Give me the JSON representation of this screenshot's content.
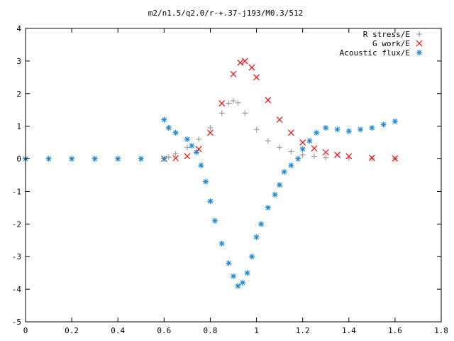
{
  "chart_data": {
    "type": "scatter",
    "title": "m2/n1.5/q2.0/r-+.37-j193/M0.3/512",
    "xlabel": "",
    "ylabel": "",
    "xlim": [
      0,
      1.8
    ],
    "ylim": [
      -5,
      4
    ],
    "xticks": [
      "0",
      "0.2",
      "0.4",
      "0.6",
      "0.8",
      "1",
      "1.2",
      "1.4",
      "1.6",
      "1.8"
    ],
    "yticks": [
      "4",
      "3",
      "2",
      "1",
      "0",
      "-1",
      "-2",
      "-3",
      "-4",
      "-5"
    ],
    "grid": false,
    "legend_position": "top-right",
    "series": [
      {
        "name": "R stress/E",
        "marker": "plus",
        "color": "#a0a0a0",
        "points": [
          [
            0,
            0
          ],
          [
            0.1,
            0
          ],
          [
            0.2,
            0
          ],
          [
            0.3,
            0
          ],
          [
            0.4,
            0
          ],
          [
            0.5,
            0
          ],
          [
            0.6,
            0
          ],
          [
            0.62,
            0.05
          ],
          [
            0.65,
            0.15
          ],
          [
            0.7,
            0.35
          ],
          [
            0.75,
            0.6
          ],
          [
            0.8,
            0.95
          ],
          [
            0.85,
            1.4
          ],
          [
            0.88,
            1.7
          ],
          [
            0.9,
            1.78
          ],
          [
            0.92,
            1.72
          ],
          [
            0.95,
            1.4
          ],
          [
            1.0,
            0.9
          ],
          [
            1.05,
            0.55
          ],
          [
            1.1,
            0.35
          ],
          [
            1.15,
            0.22
          ],
          [
            1.2,
            0.12
          ],
          [
            1.25,
            0.07
          ],
          [
            1.3,
            0.04
          ],
          [
            1.4,
            0.02
          ],
          [
            1.5,
            0.01
          ],
          [
            1.6,
            0.0
          ]
        ]
      },
      {
        "name": "G work/E",
        "marker": "cross",
        "color": "#ff0000",
        "points": [
          [
            0.6,
            0
          ],
          [
            0.65,
            0.02
          ],
          [
            0.7,
            0.08
          ],
          [
            0.75,
            0.3
          ],
          [
            0.8,
            0.8
          ],
          [
            0.85,
            1.7
          ],
          [
            0.9,
            2.6
          ],
          [
            0.93,
            2.95
          ],
          [
            0.95,
            3.0
          ],
          [
            0.98,
            2.8
          ],
          [
            1.0,
            2.5
          ],
          [
            1.05,
            1.8
          ],
          [
            1.1,
            1.2
          ],
          [
            1.15,
            0.8
          ],
          [
            1.2,
            0.5
          ],
          [
            1.25,
            0.32
          ],
          [
            1.3,
            0.2
          ],
          [
            1.35,
            0.12
          ],
          [
            1.4,
            0.08
          ],
          [
            1.5,
            0.03
          ],
          [
            1.6,
            0.01
          ]
        ]
      },
      {
        "name": "Acoustic flux/E",
        "marker": "star",
        "color": "#1a8ad4",
        "points": [
          [
            0,
            0
          ],
          [
            0.1,
            0
          ],
          [
            0.2,
            0
          ],
          [
            0.3,
            0
          ],
          [
            0.4,
            0
          ],
          [
            0.5,
            0
          ],
          [
            0.6,
            0
          ],
          [
            0.6,
            1.2
          ],
          [
            0.62,
            0.95
          ],
          [
            0.65,
            0.8
          ],
          [
            0.7,
            0.6
          ],
          [
            0.72,
            0.4
          ],
          [
            0.74,
            0.2
          ],
          [
            0.76,
            -0.2
          ],
          [
            0.78,
            -0.7
          ],
          [
            0.8,
            -1.3
          ],
          [
            0.82,
            -1.9
          ],
          [
            0.85,
            -2.6
          ],
          [
            0.88,
            -3.2
          ],
          [
            0.9,
            -3.6
          ],
          [
            0.92,
            -3.9
          ],
          [
            0.94,
            -3.8
          ],
          [
            0.96,
            -3.5
          ],
          [
            0.98,
            -3.0
          ],
          [
            1.0,
            -2.4
          ],
          [
            1.02,
            -2.0
          ],
          [
            1.05,
            -1.5
          ],
          [
            1.08,
            -1.1
          ],
          [
            1.1,
            -0.8
          ],
          [
            1.12,
            -0.4
          ],
          [
            1.15,
            -0.2
          ],
          [
            1.18,
            0.0
          ],
          [
            1.2,
            0.3
          ],
          [
            1.23,
            0.55
          ],
          [
            1.26,
            0.8
          ],
          [
            1.3,
            0.95
          ],
          [
            1.35,
            0.9
          ],
          [
            1.4,
            0.85
          ],
          [
            1.45,
            0.9
          ],
          [
            1.5,
            0.95
          ],
          [
            1.55,
            1.05
          ],
          [
            1.6,
            1.15
          ]
        ]
      }
    ]
  }
}
